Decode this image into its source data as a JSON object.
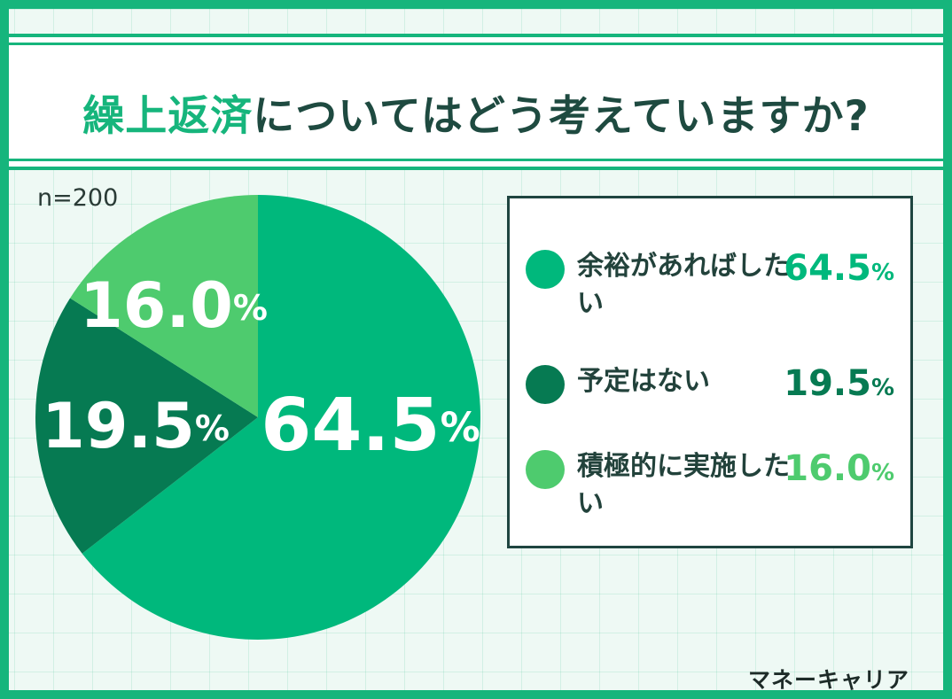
{
  "title": {
    "accent": "繰上返済",
    "rest": "についてはどう考えていますか?"
  },
  "sample_size": "n=200",
  "brand": "マネーキャリア",
  "colors": {
    "frame": "#16b57c",
    "primary": "#00b87c",
    "dark": "#067a52",
    "light": "#4ecb6e"
  },
  "chart_data": {
    "type": "pie",
    "title": "繰上返済についてはどう考えていますか?",
    "unit": "%",
    "slices": [
      {
        "label": "余裕があればしたい",
        "value": 64.5,
        "display": "64.5",
        "color": "#00b87c"
      },
      {
        "label": "予定はない",
        "value": 19.5,
        "display": "19.5",
        "color": "#067a52"
      },
      {
        "label": "積極的に実施したい",
        "value": 16.0,
        "display": "16.0",
        "color": "#4ecb6e"
      }
    ]
  },
  "legend": [
    {
      "label": "余裕があればしたい",
      "value": "64.5",
      "unit": "%",
      "color": "#00b87c"
    },
    {
      "label": "予定はない",
      "value": "19.5",
      "unit": "%",
      "color": "#067a52"
    },
    {
      "label": "積極的に実施したい",
      "value": "16.0",
      "unit": "%",
      "color": "#4ecb6e"
    }
  ]
}
